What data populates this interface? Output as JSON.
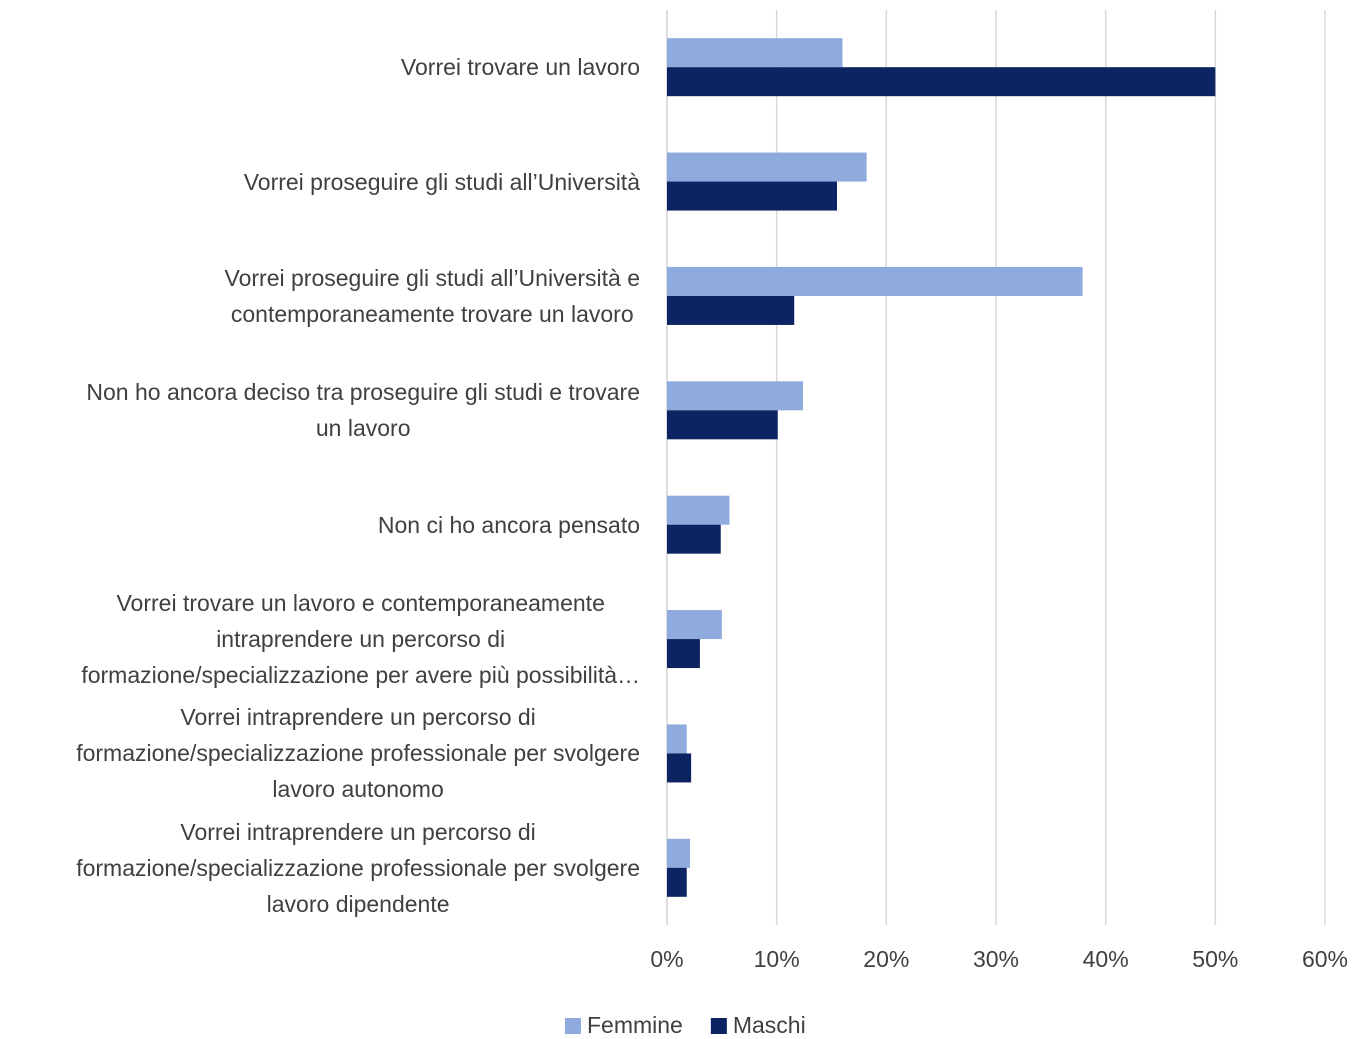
{
  "chart_data": {
    "type": "bar",
    "orientation": "horizontal",
    "categories": [
      "Vorrei trovare un lavoro",
      "Vorrei proseguire gli studi all’Università",
      "Vorrei proseguire gli studi all’Università e\ncontemporaneamente trovare un lavoro",
      "Non ho ancora deciso tra proseguire gli studi e trovare\nun lavoro",
      "Non ci ho ancora pensato",
      "Vorrei trovare un lavoro e contemporaneamente\nintraprendere un percorso di\nformazione/specializzazione per avere più possibilità…",
      "Vorrei intraprendere un percorso di\nformazione/specializzazione professionale per svolgere\nlavoro autonomo",
      "Vorrei intraprendere un percorso di\nformazione/specializzazione professionale per svolgere\nlavoro dipendente"
    ],
    "series": [
      {
        "name": "Femmine",
        "color": "#8faadc",
        "values": [
          16,
          18.2,
          37.9,
          12.4,
          5.7,
          5.0,
          1.8,
          2.1
        ]
      },
      {
        "name": "Maschi",
        "color": "#0c2461",
        "values": [
          50,
          15.5,
          11.6,
          10.1,
          4.9,
          3.0,
          2.2,
          1.8
        ]
      }
    ],
    "xlim": [
      0,
      60
    ],
    "xticks": [
      {
        "value": 0,
        "label": "0%"
      },
      {
        "value": 10,
        "label": "10%"
      },
      {
        "value": 20,
        "label": "20%"
      },
      {
        "value": 30,
        "label": "30%"
      },
      {
        "value": 40,
        "label": "40%"
      },
      {
        "value": 50,
        "label": "50%"
      },
      {
        "value": 60,
        "label": "60%"
      }
    ],
    "grid": true,
    "legend": "bottom"
  }
}
